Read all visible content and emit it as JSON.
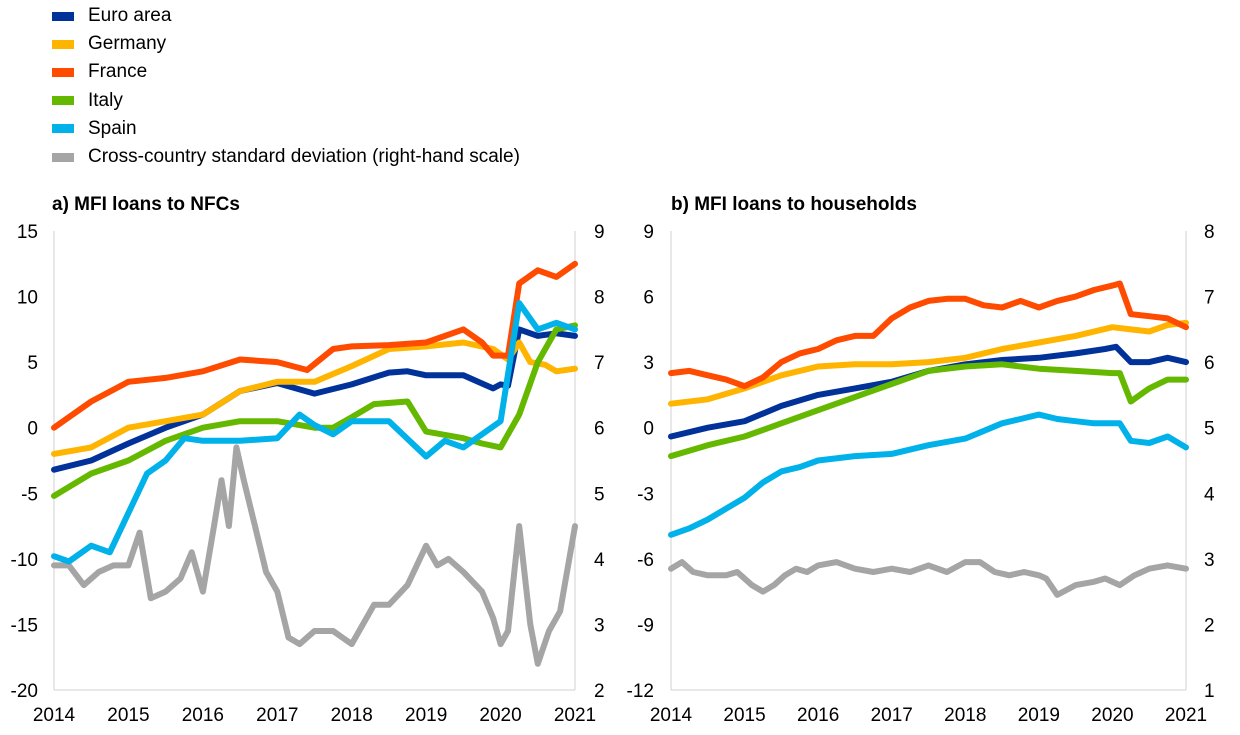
{
  "legend": [
    {
      "name": "Euro area",
      "color": "#003299"
    },
    {
      "name": "Germany",
      "color": "#FFB400"
    },
    {
      "name": "France",
      "color": "#FF4B00"
    },
    {
      "name": "Italy",
      "color": "#65B800"
    },
    {
      "name": "Spain",
      "color": "#00B1EA"
    },
    {
      "name": "Cross-country standard deviation (right-hand scale)",
      "color": "#A5A5A5"
    }
  ],
  "chart_data": [
    {
      "type": "line",
      "title": "a) MFI loans to NFCs",
      "x_ticks": [
        "2014",
        "2015",
        "2016",
        "2017",
        "2018",
        "2019",
        "2020",
        "2021"
      ],
      "y_left": {
        "lim": [
          -20,
          15
        ],
        "ticks": [
          "15",
          "10",
          "5",
          "0",
          "-5",
          "-10",
          "-15",
          "-20"
        ]
      },
      "y_right": {
        "lim": [
          2,
          9
        ],
        "ticks": [
          "9",
          "8",
          "7",
          "6",
          "5",
          "4",
          "3",
          "2"
        ]
      },
      "series": [
        {
          "name": "Euro area",
          "axis": "left",
          "color": "#003299",
          "x": [
            2014.0,
            2014.5,
            2015.0,
            2015.5,
            2016.0,
            2016.5,
            2017.0,
            2017.5,
            2018.0,
            2018.5,
            2018.75,
            2019.0,
            2019.5,
            2019.9,
            2020.0,
            2020.1,
            2020.25,
            2020.5,
            2020.75,
            2021.0
          ],
          "y": [
            -3.2,
            -2.5,
            -1.2,
            0.0,
            1.0,
            2.8,
            3.4,
            2.6,
            3.3,
            4.2,
            4.3,
            4.0,
            4.0,
            3.0,
            3.3,
            3.2,
            7.5,
            7.0,
            7.2,
            7.0
          ]
        },
        {
          "name": "Germany",
          "axis": "left",
          "color": "#FFB400",
          "x": [
            2014.0,
            2014.5,
            2015.0,
            2015.5,
            2016.0,
            2016.5,
            2017.0,
            2017.5,
            2018.0,
            2018.5,
            2019.0,
            2019.5,
            2019.9,
            2020.1,
            2020.25,
            2020.4,
            2020.6,
            2020.75,
            2021.0
          ],
          "y": [
            -2.0,
            -1.5,
            0.0,
            0.5,
            1.0,
            2.8,
            3.5,
            3.5,
            4.7,
            6.0,
            6.2,
            6.5,
            6.0,
            5.2,
            6.5,
            5.0,
            4.8,
            4.3,
            4.5
          ]
        },
        {
          "name": "France",
          "axis": "left",
          "color": "#FF4B00",
          "x": [
            2014.0,
            2014.5,
            2015.0,
            2015.5,
            2016.0,
            2016.5,
            2017.0,
            2017.4,
            2017.75,
            2018.0,
            2018.5,
            2019.0,
            2019.5,
            2019.75,
            2019.9,
            2020.1,
            2020.25,
            2020.5,
            2020.75,
            2021.0
          ],
          "y": [
            0.0,
            2.0,
            3.5,
            3.8,
            4.3,
            5.2,
            5.0,
            4.4,
            6.0,
            6.2,
            6.3,
            6.5,
            7.5,
            6.5,
            5.5,
            5.5,
            11.0,
            12.0,
            11.5,
            12.5
          ]
        },
        {
          "name": "Italy",
          "axis": "left",
          "color": "#65B800",
          "x": [
            2014.0,
            2014.5,
            2015.0,
            2015.5,
            2016.0,
            2016.5,
            2017.0,
            2017.5,
            2017.75,
            2018.0,
            2018.3,
            2018.75,
            2019.0,
            2019.5,
            2019.75,
            2020.0,
            2020.25,
            2020.5,
            2020.75,
            2021.0
          ],
          "y": [
            -5.2,
            -3.5,
            -2.5,
            -1.0,
            0.0,
            0.5,
            0.5,
            0.0,
            0.0,
            0.8,
            1.8,
            2.0,
            -0.3,
            -0.8,
            -1.2,
            -1.5,
            1.0,
            5.0,
            7.5,
            7.8
          ]
        },
        {
          "name": "Spain",
          "axis": "left",
          "color": "#00B1EA",
          "x": [
            2014.0,
            2014.2,
            2014.5,
            2014.75,
            2015.0,
            2015.25,
            2015.5,
            2015.75,
            2016.0,
            2016.5,
            2017.0,
            2017.3,
            2017.5,
            2017.75,
            2018.0,
            2018.5,
            2019.0,
            2019.25,
            2019.5,
            2019.75,
            2020.0,
            2020.25,
            2020.5,
            2020.75,
            2021.0
          ],
          "y": [
            -9.8,
            -10.2,
            -9.0,
            -9.5,
            -6.5,
            -3.5,
            -2.5,
            -0.8,
            -1.0,
            -1.0,
            -0.8,
            1.0,
            0.2,
            -0.5,
            0.5,
            0.5,
            -2.2,
            -1.0,
            -1.5,
            -0.5,
            0.5,
            9.5,
            7.5,
            8.0,
            7.5
          ]
        },
        {
          "name": "Cross-country standard deviation (right-hand scale)",
          "axis": "right",
          "color": "#A5A5A5",
          "x": [
            2014.0,
            2014.2,
            2014.4,
            2014.6,
            2014.8,
            2015.0,
            2015.15,
            2015.3,
            2015.5,
            2015.7,
            2015.85,
            2016.0,
            2016.15,
            2016.25,
            2016.35,
            2016.45,
            2016.55,
            2016.7,
            2016.85,
            2017.0,
            2017.15,
            2017.3,
            2017.5,
            2017.75,
            2018.0,
            2018.15,
            2018.3,
            2018.5,
            2018.75,
            2019.0,
            2019.15,
            2019.3,
            2019.5,
            2019.75,
            2019.9,
            2020.0,
            2020.1,
            2020.25,
            2020.4,
            2020.5,
            2020.65,
            2020.8,
            2021.0
          ],
          "y": [
            3.9,
            3.9,
            3.6,
            3.8,
            3.9,
            3.9,
            4.4,
            3.4,
            3.5,
            3.7,
            4.1,
            3.5,
            4.5,
            5.2,
            4.5,
            5.7,
            5.2,
            4.5,
            3.8,
            3.5,
            2.8,
            2.7,
            2.9,
            2.9,
            2.7,
            3.0,
            3.3,
            3.3,
            3.6,
            4.2,
            3.9,
            4.0,
            3.8,
            3.5,
            3.1,
            2.7,
            2.9,
            4.5,
            3.0,
            2.4,
            2.9,
            3.2,
            4.5
          ]
        }
      ]
    },
    {
      "type": "line",
      "title": "b) MFI loans to households",
      "x_ticks": [
        "2014",
        "2015",
        "2016",
        "2017",
        "2018",
        "2019",
        "2020",
        "2021"
      ],
      "y_left": {
        "lim": [
          -12,
          9
        ],
        "ticks": [
          "9",
          "6",
          "3",
          "0",
          "-3",
          "-6",
          "-9",
          "-12"
        ]
      },
      "y_right": {
        "lim": [
          1,
          8
        ],
        "ticks": [
          "8",
          "7",
          "6",
          "5",
          "4",
          "3",
          "2",
          "1"
        ]
      },
      "series": [
        {
          "name": "Euro area",
          "axis": "left",
          "color": "#003299",
          "x": [
            2014.0,
            2014.5,
            2015.0,
            2015.5,
            2016.0,
            2016.5,
            2017.0,
            2017.5,
            2018.0,
            2018.5,
            2019.0,
            2019.5,
            2019.9,
            2020.05,
            2020.25,
            2020.5,
            2020.75,
            2021.0
          ],
          "y": [
            -0.4,
            0.0,
            0.3,
            1.0,
            1.5,
            1.8,
            2.1,
            2.6,
            2.9,
            3.1,
            3.2,
            3.4,
            3.6,
            3.7,
            3.0,
            3.0,
            3.2,
            3.0
          ]
        },
        {
          "name": "Germany",
          "axis": "left",
          "color": "#FFB400",
          "x": [
            2014.0,
            2014.5,
            2015.0,
            2015.5,
            2016.0,
            2016.5,
            2017.0,
            2017.5,
            2018.0,
            2018.5,
            2019.0,
            2019.5,
            2020.0,
            2020.25,
            2020.5,
            2020.75,
            2021.0
          ],
          "y": [
            1.1,
            1.3,
            1.8,
            2.4,
            2.8,
            2.9,
            2.9,
            3.0,
            3.2,
            3.6,
            3.9,
            4.2,
            4.6,
            4.5,
            4.4,
            4.7,
            4.8
          ]
        },
        {
          "name": "France",
          "axis": "left",
          "color": "#FF4B00",
          "x": [
            2014.0,
            2014.25,
            2014.5,
            2014.75,
            2015.0,
            2015.25,
            2015.5,
            2015.75,
            2016.0,
            2016.25,
            2016.5,
            2016.75,
            2017.0,
            2017.25,
            2017.5,
            2017.75,
            2018.0,
            2018.25,
            2018.5,
            2018.75,
            2019.0,
            2019.25,
            2019.5,
            2019.75,
            2020.0,
            2020.1,
            2020.25,
            2020.5,
            2020.75,
            2021.0
          ],
          "y": [
            2.5,
            2.6,
            2.4,
            2.2,
            1.9,
            2.3,
            3.0,
            3.4,
            3.6,
            4.0,
            4.2,
            4.2,
            5.0,
            5.5,
            5.8,
            5.9,
            5.9,
            5.6,
            5.5,
            5.8,
            5.5,
            5.8,
            6.0,
            6.3,
            6.5,
            6.6,
            5.2,
            5.1,
            5.0,
            4.6
          ]
        },
        {
          "name": "Italy",
          "axis": "left",
          "color": "#65B800",
          "x": [
            2014.0,
            2014.5,
            2015.0,
            2015.5,
            2016.0,
            2016.5,
            2017.0,
            2017.5,
            2018.0,
            2018.5,
            2019.0,
            2019.5,
            2020.0,
            2020.1,
            2020.25,
            2020.5,
            2020.75,
            2021.0
          ],
          "y": [
            -1.3,
            -0.8,
            -0.4,
            0.2,
            0.8,
            1.4,
            2.0,
            2.6,
            2.8,
            2.9,
            2.7,
            2.6,
            2.5,
            2.5,
            1.2,
            1.8,
            2.2,
            2.2
          ]
        },
        {
          "name": "Spain",
          "axis": "left",
          "color": "#00B1EA",
          "x": [
            2014.0,
            2014.25,
            2014.5,
            2014.75,
            2015.0,
            2015.25,
            2015.5,
            2015.75,
            2016.0,
            2016.5,
            2017.0,
            2017.5,
            2018.0,
            2018.5,
            2018.75,
            2019.0,
            2019.25,
            2019.5,
            2019.75,
            2020.0,
            2020.1,
            2020.25,
            2020.5,
            2020.75,
            2021.0
          ],
          "y": [
            -4.9,
            -4.6,
            -4.2,
            -3.7,
            -3.2,
            -2.5,
            -2.0,
            -1.8,
            -1.5,
            -1.3,
            -1.2,
            -0.8,
            -0.5,
            0.2,
            0.4,
            0.6,
            0.4,
            0.3,
            0.2,
            0.2,
            0.2,
            -0.6,
            -0.7,
            -0.4,
            -0.9
          ]
        },
        {
          "name": "Cross-country standard deviation (right-hand scale)",
          "axis": "right",
          "color": "#A5A5A5",
          "x": [
            2014.0,
            2014.15,
            2014.3,
            2014.5,
            2014.75,
            2014.9,
            2015.1,
            2015.25,
            2015.4,
            2015.55,
            2015.7,
            2015.85,
            2016.0,
            2016.25,
            2016.5,
            2016.75,
            2017.0,
            2017.25,
            2017.5,
            2017.75,
            2018.0,
            2018.2,
            2018.4,
            2018.6,
            2018.8,
            2019.0,
            2019.1,
            2019.25,
            2019.5,
            2019.75,
            2019.9,
            2020.1,
            2020.3,
            2020.5,
            2020.75,
            2021.0
          ],
          "y": [
            2.85,
            2.95,
            2.8,
            2.75,
            2.75,
            2.8,
            2.6,
            2.5,
            2.6,
            2.75,
            2.85,
            2.8,
            2.9,
            2.95,
            2.85,
            2.8,
            2.85,
            2.8,
            2.9,
            2.8,
            2.95,
            2.95,
            2.8,
            2.75,
            2.8,
            2.75,
            2.7,
            2.45,
            2.6,
            2.65,
            2.7,
            2.6,
            2.75,
            2.85,
            2.9,
            2.85
          ]
        }
      ]
    }
  ]
}
